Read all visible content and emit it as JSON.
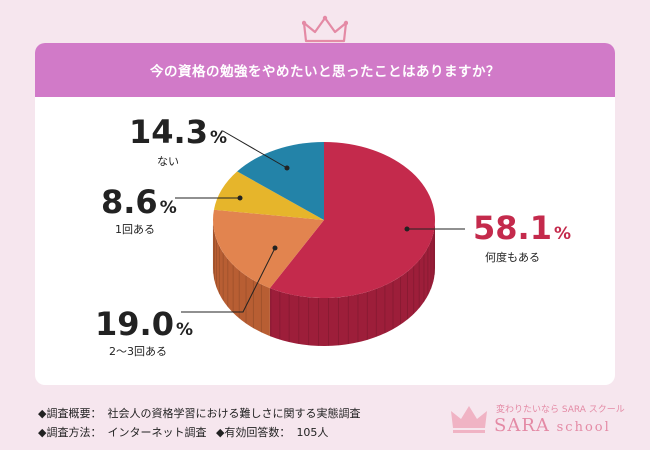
{
  "header": {
    "title": "今の資格の勉強をやめたいと思ったことはありますか？"
  },
  "chart_data": {
    "type": "pie",
    "title": "今の資格の勉強をやめたいと思ったことはありますか？",
    "unit": "%",
    "slices": [
      {
        "label": "何度もある",
        "value": 58.1,
        "color": "#c42a4c",
        "side": "#9d1e3a"
      },
      {
        "label": "2～3回ある",
        "value": 19.0,
        "color": "#e2844f",
        "side": "#b85e33"
      },
      {
        "label": "1回ある",
        "value": 8.6,
        "color": "#e6b52b",
        "side": "#b98d18"
      },
      {
        "label": "ない",
        "value": 14.3,
        "color": "#2383a8",
        "side": "#1a6685"
      }
    ]
  },
  "labels": {
    "slice0_num": "58.1",
    "slice0_text": "何度もある",
    "slice1_num": "19.0",
    "slice1_text": "2～3回ある",
    "slice2_num": "8.6",
    "slice2_text": "1回ある",
    "slice3_num": "14.3",
    "slice3_text": "ない",
    "percent_sign": "%"
  },
  "footer": {
    "line1_label": "◆調査概要：",
    "line1_value": "社会人の資格学習における難しさに関する実態調査",
    "line2_label": "◆調査方法：",
    "line2_value": "インターネット調査",
    "line2b_label": "◆有効回答数：",
    "line2b_value": "105人"
  },
  "brand": {
    "tagline": "変わりたいなら SARA スクール",
    "name": "SARA",
    "name_suffix": "school"
  }
}
